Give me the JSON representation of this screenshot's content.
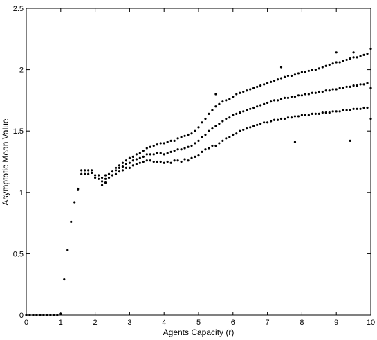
{
  "chart_data": {
    "type": "scatter",
    "title": "",
    "xlabel": "Agents Capacity (r)",
    "ylabel": "Asymptotic Mean Value",
    "xlim": [
      0,
      10
    ],
    "ylim": [
      0,
      2.5
    ],
    "xticks": [
      0,
      1,
      2,
      3,
      4,
      5,
      6,
      7,
      8,
      9,
      10
    ],
    "xtick_labels": [
      "0",
      "1",
      "2",
      "3",
      "4",
      "5",
      "6",
      "7",
      "8",
      "9",
      "10"
    ],
    "yticks": [
      0,
      0.5,
      1,
      1.5,
      2,
      2.5
    ],
    "ytick_labels": [
      "0",
      "0.5",
      "1",
      "1.5",
      "2",
      "2.5"
    ],
    "grid": false,
    "marker_color": "#000000",
    "series": [
      {
        "points": [
          [
            0.0,
            0.0
          ],
          [
            0.1,
            0.0
          ],
          [
            0.2,
            0.0
          ],
          [
            0.3,
            0.0
          ],
          [
            0.4,
            0.0
          ],
          [
            0.5,
            0.0
          ],
          [
            0.6,
            0.0
          ],
          [
            0.7,
            0.0
          ],
          [
            0.8,
            0.0
          ],
          [
            0.9,
            0.0
          ],
          [
            1.0,
            0.01
          ],
          [
            1.1,
            0.29
          ],
          [
            1.2,
            0.53
          ],
          [
            1.3,
            0.76
          ],
          [
            1.4,
            0.92
          ],
          [
            1.5,
            1.02
          ],
          [
            1.5,
            1.03
          ],
          [
            1.6,
            1.15
          ],
          [
            1.6,
            1.18
          ],
          [
            1.7,
            1.15
          ],
          [
            1.7,
            1.18
          ],
          [
            1.8,
            1.15
          ],
          [
            1.8,
            1.18
          ],
          [
            1.9,
            1.16
          ],
          [
            1.9,
            1.18
          ],
          [
            2.0,
            1.12
          ],
          [
            2.0,
            1.14
          ],
          [
            2.1,
            1.11
          ],
          [
            2.1,
            1.14
          ],
          [
            2.2,
            1.06
          ],
          [
            2.2,
            1.09
          ],
          [
            2.2,
            1.12
          ],
          [
            2.3,
            1.08
          ],
          [
            2.3,
            1.11
          ],
          [
            2.3,
            1.14
          ],
          [
            2.4,
            1.12
          ],
          [
            2.4,
            1.15
          ],
          [
            2.5,
            1.14
          ],
          [
            2.5,
            1.17
          ],
          [
            2.6,
            1.15
          ],
          [
            2.6,
            1.18
          ],
          [
            2.6,
            1.2
          ],
          [
            2.7,
            1.17
          ],
          [
            2.7,
            1.2
          ],
          [
            2.7,
            1.22
          ],
          [
            2.8,
            1.18
          ],
          [
            2.8,
            1.21
          ],
          [
            2.8,
            1.24
          ],
          [
            2.9,
            1.2
          ],
          [
            2.9,
            1.23
          ],
          [
            2.9,
            1.26
          ],
          [
            3.0,
            1.2
          ],
          [
            3.0,
            1.24
          ],
          [
            3.0,
            1.28
          ],
          [
            3.1,
            1.22
          ],
          [
            3.1,
            1.26
          ],
          [
            3.1,
            1.29
          ],
          [
            3.2,
            1.23
          ],
          [
            3.2,
            1.27
          ],
          [
            3.2,
            1.31
          ],
          [
            3.3,
            1.24
          ],
          [
            3.3,
            1.28
          ],
          [
            3.3,
            1.32
          ],
          [
            3.4,
            1.25
          ],
          [
            3.4,
            1.29
          ],
          [
            3.4,
            1.34
          ],
          [
            3.5,
            1.26
          ],
          [
            3.5,
            1.31
          ],
          [
            3.5,
            1.36
          ],
          [
            3.6,
            1.26
          ],
          [
            3.6,
            1.31
          ],
          [
            3.6,
            1.37
          ],
          [
            3.7,
            1.25
          ],
          [
            3.7,
            1.31
          ],
          [
            3.7,
            1.38
          ],
          [
            3.8,
            1.25
          ],
          [
            3.8,
            1.32
          ],
          [
            3.8,
            1.39
          ],
          [
            3.9,
            1.25
          ],
          [
            3.9,
            1.32
          ],
          [
            3.9,
            1.4
          ],
          [
            4.0,
            1.24
          ],
          [
            4.0,
            1.31
          ],
          [
            4.0,
            1.4
          ],
          [
            4.1,
            1.25
          ],
          [
            4.1,
            1.32
          ],
          [
            4.1,
            1.41
          ],
          [
            4.2,
            1.24
          ],
          [
            4.2,
            1.33
          ],
          [
            4.2,
            1.42
          ],
          [
            4.3,
            1.26
          ],
          [
            4.3,
            1.34
          ],
          [
            4.3,
            1.42
          ],
          [
            4.4,
            1.26
          ],
          [
            4.4,
            1.35
          ],
          [
            4.4,
            1.44
          ],
          [
            4.5,
            1.25
          ],
          [
            4.5,
            1.35
          ],
          [
            4.5,
            1.45
          ],
          [
            4.6,
            1.27
          ],
          [
            4.6,
            1.36
          ],
          [
            4.6,
            1.46
          ],
          [
            4.7,
            1.26
          ],
          [
            4.7,
            1.37
          ],
          [
            4.7,
            1.47
          ],
          [
            4.8,
            1.28
          ],
          [
            4.8,
            1.38
          ],
          [
            4.8,
            1.48
          ],
          [
            4.9,
            1.29
          ],
          [
            4.9,
            1.4
          ],
          [
            4.9,
            1.5
          ],
          [
            5.0,
            1.3
          ],
          [
            5.0,
            1.42
          ],
          [
            5.0,
            1.53
          ],
          [
            5.1,
            1.33
          ],
          [
            5.1,
            1.45
          ],
          [
            5.1,
            1.57
          ],
          [
            5.2,
            1.35
          ],
          [
            5.2,
            1.47
          ],
          [
            5.2,
            1.6
          ],
          [
            5.3,
            1.36
          ],
          [
            5.3,
            1.5
          ],
          [
            5.3,
            1.64
          ],
          [
            5.4,
            1.38
          ],
          [
            5.4,
            1.52
          ],
          [
            5.4,
            1.67
          ],
          [
            5.5,
            1.38
          ],
          [
            5.5,
            1.54
          ],
          [
            5.5,
            1.7
          ],
          [
            5.5,
            1.8
          ],
          [
            5.6,
            1.4
          ],
          [
            5.6,
            1.56
          ],
          [
            5.6,
            1.72
          ],
          [
            5.7,
            1.42
          ],
          [
            5.7,
            1.58
          ],
          [
            5.7,
            1.74
          ],
          [
            5.8,
            1.44
          ],
          [
            5.8,
            1.6
          ],
          [
            5.8,
            1.75
          ],
          [
            5.9,
            1.45
          ],
          [
            5.9,
            1.61
          ],
          [
            5.9,
            1.76
          ],
          [
            6.0,
            1.47
          ],
          [
            6.0,
            1.63
          ],
          [
            6.0,
            1.78
          ],
          [
            6.1,
            1.48
          ],
          [
            6.1,
            1.64
          ],
          [
            6.1,
            1.8
          ],
          [
            6.2,
            1.5
          ],
          [
            6.2,
            1.65
          ],
          [
            6.2,
            1.81
          ],
          [
            6.3,
            1.51
          ],
          [
            6.3,
            1.66
          ],
          [
            6.3,
            1.82
          ],
          [
            6.4,
            1.52
          ],
          [
            6.4,
            1.67
          ],
          [
            6.4,
            1.83
          ],
          [
            6.5,
            1.53
          ],
          [
            6.5,
            1.68
          ],
          [
            6.5,
            1.84
          ],
          [
            6.6,
            1.54
          ],
          [
            6.6,
            1.69
          ],
          [
            6.6,
            1.85
          ],
          [
            6.7,
            1.55
          ],
          [
            6.7,
            1.7
          ],
          [
            6.7,
            1.86
          ],
          [
            6.8,
            1.56
          ],
          [
            6.8,
            1.71
          ],
          [
            6.8,
            1.87
          ],
          [
            6.9,
            1.57
          ],
          [
            6.9,
            1.72
          ],
          [
            6.9,
            1.88
          ],
          [
            7.0,
            1.57
          ],
          [
            7.0,
            1.73
          ],
          [
            7.0,
            1.89
          ],
          [
            7.1,
            1.58
          ],
          [
            7.1,
            1.74
          ],
          [
            7.1,
            1.9
          ],
          [
            7.2,
            1.59
          ],
          [
            7.2,
            1.75
          ],
          [
            7.2,
            1.91
          ],
          [
            7.3,
            1.59
          ],
          [
            7.3,
            1.75
          ],
          [
            7.3,
            1.92
          ],
          [
            7.4,
            1.6
          ],
          [
            7.4,
            1.76
          ],
          [
            7.4,
            1.93
          ],
          [
            7.4,
            2.02
          ],
          [
            7.5,
            1.6
          ],
          [
            7.5,
            1.77
          ],
          [
            7.5,
            1.94
          ],
          [
            7.6,
            1.61
          ],
          [
            7.6,
            1.77
          ],
          [
            7.6,
            1.95
          ],
          [
            7.7,
            1.61
          ],
          [
            7.7,
            1.78
          ],
          [
            7.7,
            1.95
          ],
          [
            7.8,
            1.62
          ],
          [
            7.8,
            1.78
          ],
          [
            7.8,
            1.96
          ],
          [
            7.8,
            1.41
          ],
          [
            7.9,
            1.62
          ],
          [
            7.9,
            1.79
          ],
          [
            7.9,
            1.97
          ],
          [
            8.0,
            1.63
          ],
          [
            8.0,
            1.79
          ],
          [
            8.0,
            1.98
          ],
          [
            8.1,
            1.63
          ],
          [
            8.1,
            1.8
          ],
          [
            8.1,
            1.98
          ],
          [
            8.2,
            1.63
          ],
          [
            8.2,
            1.8
          ],
          [
            8.2,
            1.99
          ],
          [
            8.3,
            1.64
          ],
          [
            8.3,
            1.81
          ],
          [
            8.3,
            2.0
          ],
          [
            8.4,
            1.64
          ],
          [
            8.4,
            1.81
          ],
          [
            8.4,
            2.0
          ],
          [
            8.5,
            1.64
          ],
          [
            8.5,
            1.82
          ],
          [
            8.5,
            2.01
          ],
          [
            8.6,
            1.65
          ],
          [
            8.6,
            1.82
          ],
          [
            8.6,
            2.02
          ],
          [
            8.7,
            1.65
          ],
          [
            8.7,
            1.83
          ],
          [
            8.7,
            2.03
          ],
          [
            8.8,
            1.65
          ],
          [
            8.8,
            1.83
          ],
          [
            8.8,
            2.04
          ],
          [
            8.9,
            1.66
          ],
          [
            8.9,
            1.84
          ],
          [
            8.9,
            2.05
          ],
          [
            9.0,
            1.66
          ],
          [
            9.0,
            1.84
          ],
          [
            9.0,
            2.06
          ],
          [
            9.0,
            2.14
          ],
          [
            9.1,
            1.66
          ],
          [
            9.1,
            1.85
          ],
          [
            9.1,
            2.06
          ],
          [
            9.2,
            1.67
          ],
          [
            9.2,
            1.85
          ],
          [
            9.2,
            2.07
          ],
          [
            9.3,
            1.67
          ],
          [
            9.3,
            1.86
          ],
          [
            9.3,
            2.08
          ],
          [
            9.4,
            1.67
          ],
          [
            9.4,
            1.86
          ],
          [
            9.4,
            2.09
          ],
          [
            9.4,
            1.42
          ],
          [
            9.5,
            1.68
          ],
          [
            9.5,
            1.87
          ],
          [
            9.5,
            2.1
          ],
          [
            9.5,
            2.14
          ],
          [
            9.6,
            1.68
          ],
          [
            9.6,
            1.87
          ],
          [
            9.6,
            2.1
          ],
          [
            9.7,
            1.68
          ],
          [
            9.7,
            1.88
          ],
          [
            9.7,
            2.11
          ],
          [
            9.8,
            1.69
          ],
          [
            9.8,
            1.88
          ],
          [
            9.8,
            2.12
          ],
          [
            9.9,
            1.69
          ],
          [
            9.9,
            1.89
          ],
          [
            9.9,
            2.13
          ],
          [
            10.0,
            1.6
          ],
          [
            10.0,
            1.85
          ],
          [
            10.0,
            2.17
          ]
        ]
      }
    ]
  }
}
